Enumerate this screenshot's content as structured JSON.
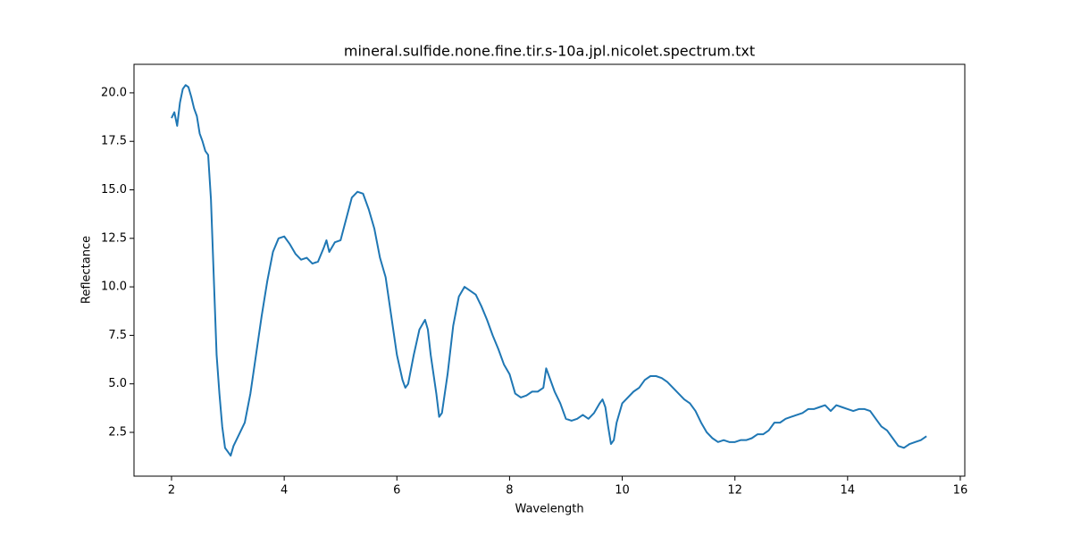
{
  "chart_data": {
    "type": "line",
    "title": "mineral.sulfide.none.fine.tir.s-10a.jpl.nicolet.spectrum.txt",
    "x_label": "Wavelength",
    "y_label": "Reflectance",
    "color": "#1f77b4",
    "x": [
      2.0,
      2.05,
      2.1,
      2.15,
      2.2,
      2.25,
      2.3,
      2.35,
      2.4,
      2.45,
      2.5,
      2.55,
      2.6,
      2.65,
      2.7,
      2.75,
      2.8,
      2.85,
      2.9,
      2.95,
      3.0,
      3.05,
      3.1,
      3.2,
      3.3,
      3.4,
      3.5,
      3.6,
      3.7,
      3.8,
      3.9,
      4.0,
      4.1,
      4.2,
      4.3,
      4.4,
      4.5,
      4.6,
      4.7,
      4.75,
      4.8,
      4.9,
      5.0,
      5.1,
      5.2,
      5.3,
      5.4,
      5.5,
      5.6,
      5.7,
      5.8,
      5.9,
      6.0,
      6.1,
      6.15,
      6.2,
      6.3,
      6.4,
      6.5,
      6.55,
      6.6,
      6.7,
      6.75,
      6.8,
      6.9,
      7.0,
      7.1,
      7.2,
      7.3,
      7.4,
      7.5,
      7.6,
      7.7,
      7.8,
      7.9,
      8.0,
      8.1,
      8.2,
      8.3,
      8.4,
      8.5,
      8.6,
      8.65,
      8.7,
      8.8,
      8.9,
      9.0,
      9.1,
      9.2,
      9.3,
      9.4,
      9.5,
      9.6,
      9.65,
      9.7,
      9.75,
      9.8,
      9.85,
      9.9,
      10.0,
      10.1,
      10.2,
      10.3,
      10.4,
      10.5,
      10.6,
      10.7,
      10.8,
      10.9,
      11.0,
      11.1,
      11.2,
      11.3,
      11.4,
      11.5,
      11.6,
      11.7,
      11.8,
      11.9,
      12.0,
      12.1,
      12.2,
      12.3,
      12.4,
      12.5,
      12.6,
      12.7,
      12.8,
      12.9,
      13.0,
      13.1,
      13.2,
      13.3,
      13.4,
      13.5,
      13.6,
      13.7,
      13.8,
      13.9,
      14.0,
      14.1,
      14.2,
      14.3,
      14.4,
      14.5,
      14.6,
      14.7,
      14.8,
      14.9,
      15.0,
      15.1,
      15.2,
      15.3,
      15.4
    ],
    "values": [
      18.7,
      19.0,
      18.3,
      19.5,
      20.2,
      20.4,
      20.3,
      19.8,
      19.2,
      18.8,
      17.9,
      17.5,
      17.0,
      16.8,
      14.5,
      10.5,
      6.5,
      4.5,
      2.8,
      1.7,
      1.5,
      1.3,
      1.8,
      2.4,
      3.0,
      4.5,
      6.5,
      8.5,
      10.3,
      11.8,
      12.5,
      12.6,
      12.2,
      11.7,
      11.4,
      11.5,
      11.2,
      11.3,
      12.0,
      12.4,
      11.8,
      12.3,
      12.4,
      13.5,
      14.6,
      14.9,
      14.8,
      14.0,
      13.0,
      11.5,
      10.5,
      8.5,
      6.5,
      5.2,
      4.8,
      5.0,
      6.5,
      7.8,
      8.3,
      7.8,
      6.5,
      4.5,
      3.3,
      3.5,
      5.5,
      8.0,
      9.5,
      10.0,
      9.8,
      9.6,
      9.0,
      8.3,
      7.5,
      6.8,
      6.0,
      5.5,
      4.5,
      4.3,
      4.4,
      4.6,
      4.6,
      4.8,
      5.8,
      5.4,
      4.6,
      4.0,
      3.2,
      3.1,
      3.2,
      3.4,
      3.2,
      3.5,
      4.0,
      4.2,
      3.8,
      2.8,
      1.9,
      2.1,
      3.0,
      4.0,
      4.3,
      4.6,
      4.8,
      5.2,
      5.4,
      5.4,
      5.3,
      5.1,
      4.8,
      4.5,
      4.2,
      4.0,
      3.6,
      3.0,
      2.5,
      2.2,
      2.0,
      2.1,
      2.0,
      2.0,
      2.1,
      2.1,
      2.2,
      2.4,
      2.4,
      2.6,
      3.0,
      3.0,
      3.2,
      3.3,
      3.4,
      3.5,
      3.7,
      3.7,
      3.8,
      3.9,
      3.6,
      3.9,
      3.8,
      3.7,
      3.6,
      3.7,
      3.7,
      3.6,
      3.2,
      2.8,
      2.6,
      2.2,
      1.8,
      1.7,
      1.9,
      2.0,
      2.1,
      2.3
    ],
    "xlim": [
      1.334,
      16.08
    ],
    "ylim": [
      0.243,
      21.47
    ],
    "xticks": [
      2,
      4,
      6,
      8,
      10,
      12,
      14,
      16
    ],
    "yticks": [
      2.5,
      {
        "value": 5,
        "label": "5.0"
      },
      7.5,
      {
        "value": 10,
        "label": "10.0"
      },
      12.5,
      {
        "value": 15,
        "label": "15.0"
      },
      17.5,
      {
        "value": 20,
        "label": "20.0"
      }
    ]
  }
}
